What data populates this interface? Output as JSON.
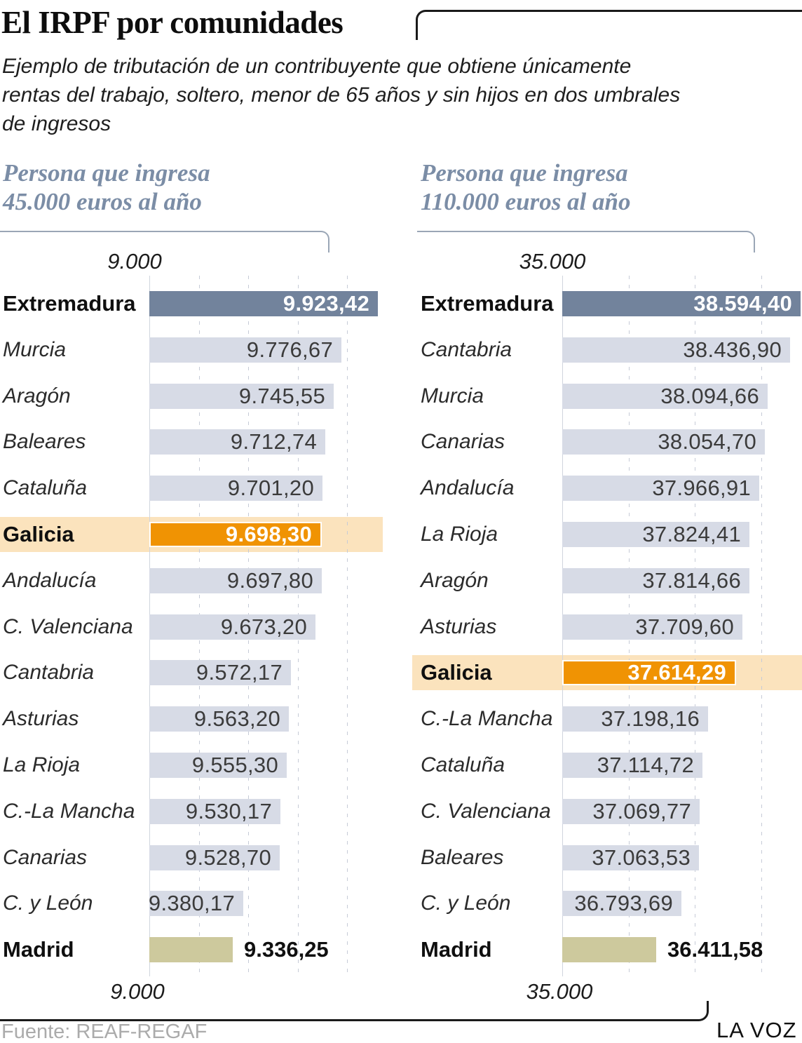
{
  "title": "El IRPF por comunidades",
  "subtitle_lines": [
    "Ejemplo de tributación de un contribuyente que obtiene únicamente",
    "rentas del trabajo, soltero, menor de 65 años y sin hijos en dos umbrales",
    "de ingresos"
  ],
  "source": "Fuente: REAF-REGAF",
  "brand": "LA VOZ",
  "colors": {
    "dark_bar": "#72839c",
    "light_bar": "#d7dbe6",
    "orange_bar": "#f09303",
    "highlight_band": "#fbe3bd",
    "khaki_bar": "#cdc99d",
    "header_text": "#7b8da6"
  },
  "chart_data": [
    {
      "type": "bar",
      "title_lines": [
        "Persona que ingresa",
        "45.000 euros al año"
      ],
      "axis_label": "9.000",
      "axis_min": 9000,
      "tick_interval": 200,
      "grid": true,
      "rows": [
        {
          "name": "Extremadura",
          "value": 9923.42,
          "label": "9.923,42",
          "style": "dark"
        },
        {
          "name": "Murcia",
          "value": 9776.67,
          "label": "9.776,67",
          "style": "normal"
        },
        {
          "name": "Aragón",
          "value": 9745.55,
          "label": "9.745,55",
          "style": "normal"
        },
        {
          "name": "Baleares",
          "value": 9712.74,
          "label": "9.712,74",
          "style": "normal"
        },
        {
          "name": "Cataluña",
          "value": 9701.2,
          "label": "9.701,20",
          "style": "normal"
        },
        {
          "name": "Galicia",
          "value": 9698.3,
          "label": "9.698,30",
          "style": "orange"
        },
        {
          "name": "Andalucía",
          "value": 9697.8,
          "label": "9.697,80",
          "style": "normal"
        },
        {
          "name": "C. Valenciana",
          "value": 9673.2,
          "label": "9.673,20",
          "style": "normal"
        },
        {
          "name": "Cantabria",
          "value": 9572.17,
          "label": "9.572,17",
          "style": "normal"
        },
        {
          "name": "Asturias",
          "value": 9563.2,
          "label": "9.563,20",
          "style": "normal"
        },
        {
          "name": "La Rioja",
          "value": 9555.3,
          "label": "9.555,30",
          "style": "normal"
        },
        {
          "name": "C.-La Mancha",
          "value": 9530.17,
          "label": "9.530,17",
          "style": "normal"
        },
        {
          "name": "Canarias",
          "value": 9528.7,
          "label": "9.528,70",
          "style": "normal"
        },
        {
          "name": "C. y León",
          "value": 9380.17,
          "label": "9.380,17",
          "style": "normal"
        },
        {
          "name": "Madrid",
          "value": 9336.25,
          "label": "9.336,25",
          "style": "khaki"
        }
      ]
    },
    {
      "type": "bar",
      "title_lines": [
        "Persona que ingresa",
        "110.000 euros al año"
      ],
      "axis_label": "35.000",
      "axis_min": 35000,
      "tick_interval": 1000,
      "grid": true,
      "rows": [
        {
          "name": "Extremadura",
          "value": 38594.4,
          "label": "38.594,40",
          "style": "dark"
        },
        {
          "name": "Cantabria",
          "value": 38436.9,
          "label": "38.436,90",
          "style": "normal"
        },
        {
          "name": "Murcia",
          "value": 38094.66,
          "label": "38.094,66",
          "style": "normal"
        },
        {
          "name": "Canarias",
          "value": 38054.7,
          "label": "38.054,70",
          "style": "normal"
        },
        {
          "name": "Andalucía",
          "value": 37966.91,
          "label": "37.966,91",
          "style": "normal"
        },
        {
          "name": "La Rioja",
          "value": 37824.41,
          "label": "37.824,41",
          "style": "normal"
        },
        {
          "name": "Aragón",
          "value": 37814.66,
          "label": "37.814,66",
          "style": "normal"
        },
        {
          "name": "Asturias",
          "value": 37709.6,
          "label": "37.709,60",
          "style": "normal"
        },
        {
          "name": "Galicia",
          "value": 37614.29,
          "label": "37.614,29",
          "style": "orange"
        },
        {
          "name": "C.-La Mancha",
          "value": 37198.16,
          "label": "37.198,16",
          "style": "normal"
        },
        {
          "name": "Cataluña",
          "value": 37114.72,
          "label": "37.114,72",
          "style": "normal"
        },
        {
          "name": "C. Valenciana",
          "value": 37069.77,
          "label": "37.069,77",
          "style": "normal"
        },
        {
          "name": "Baleares",
          "value": 37063.53,
          "label": "37.063,53",
          "style": "normal"
        },
        {
          "name": "C. y León",
          "value": 36793.69,
          "label": "36.793,69",
          "style": "normal"
        },
        {
          "name": "Madrid",
          "value": 36411.58,
          "label": "36.411,58",
          "style": "khaki"
        }
      ]
    }
  ]
}
